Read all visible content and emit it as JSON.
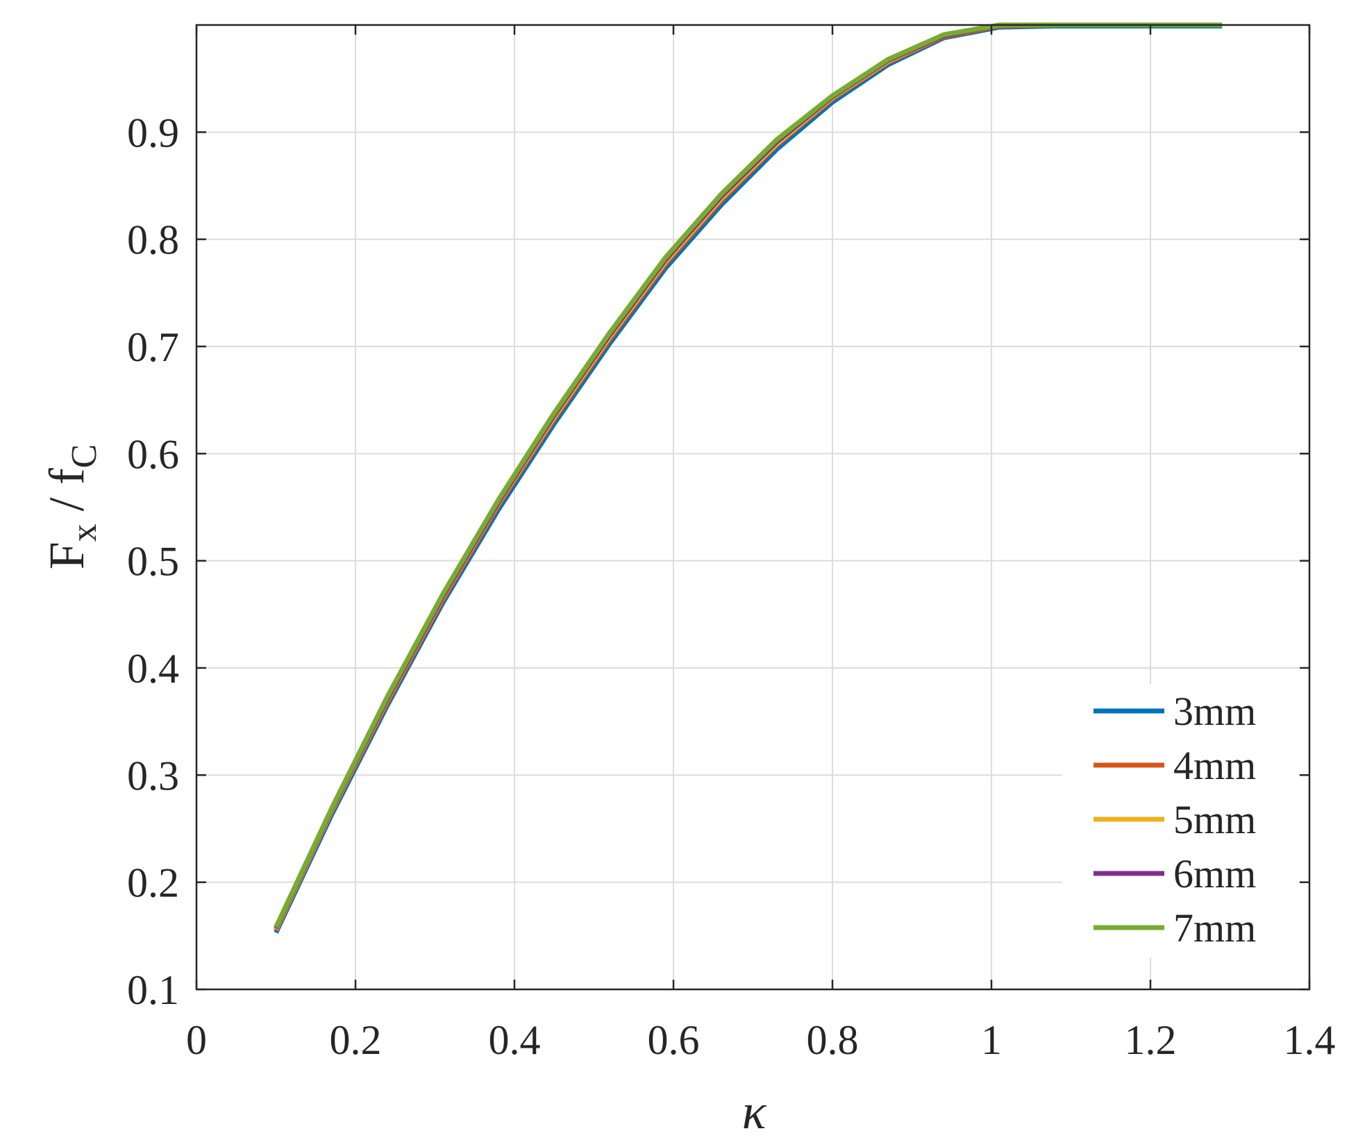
{
  "chart_data": {
    "type": "line",
    "xlabel": "κ",
    "ylabel": {
      "main": "F",
      "sub1": "x",
      "sep": " / f",
      "sub2": "C"
    },
    "xlim": [
      0,
      1.4
    ],
    "ylim": [
      0.1,
      1.0
    ],
    "x_ticks": [
      "0",
      "0.2",
      "0.4",
      "0.6",
      "0.8",
      "1",
      "1.2",
      "1.4"
    ],
    "y_ticks": [
      "0.1",
      "0.2",
      "0.3",
      "0.4",
      "0.5",
      "0.6",
      "0.7",
      "0.8",
      "0.9"
    ],
    "grid": true,
    "legend_position": "bottom-right",
    "series": [
      {
        "name": "3mm",
        "color": "#0072BD",
        "x": [
          0.1,
          0.17,
          0.24,
          0.31,
          0.38,
          0.45,
          0.52,
          0.59,
          0.66,
          0.73,
          0.8,
          0.87,
          0.94,
          1.01,
          1.08,
          1.15,
          1.22,
          1.29
        ],
        "y": [
          0.153,
          0.263,
          0.365,
          0.461,
          0.548,
          0.628,
          0.703,
          0.773,
          0.832,
          0.884,
          0.928,
          0.963,
          0.988,
          0.998,
          0.999,
          0.999,
          0.999,
          0.999
        ]
      },
      {
        "name": "4mm",
        "color": "#D95319",
        "x": [
          0.1,
          0.17,
          0.24,
          0.31,
          0.38,
          0.45,
          0.52,
          0.59,
          0.66,
          0.73,
          0.8,
          0.87,
          0.94,
          1.01,
          1.08,
          1.15,
          1.22,
          1.29
        ],
        "y": [
          0.155,
          0.266,
          0.368,
          0.464,
          0.552,
          0.632,
          0.707,
          0.777,
          0.836,
          0.888,
          0.931,
          0.965,
          0.989,
          0.999,
          1.0,
          1.0,
          1.0,
          1.0
        ]
      },
      {
        "name": "5mm",
        "color": "#EDB120",
        "x": [
          0.1,
          0.17,
          0.24,
          0.31,
          0.38,
          0.45,
          0.52,
          0.59,
          0.66,
          0.73,
          0.8,
          0.87,
          0.94,
          1.01,
          1.08,
          1.15,
          1.22,
          1.29
        ],
        "y": [
          0.156,
          0.267,
          0.37,
          0.466,
          0.554,
          0.634,
          0.709,
          0.779,
          0.838,
          0.889,
          0.932,
          0.966,
          0.99,
          1.0,
          1.0,
          1.0,
          1.0,
          1.0
        ]
      },
      {
        "name": "6mm",
        "color": "#7E2F8E",
        "x": [
          0.1,
          0.17,
          0.24,
          0.31,
          0.38,
          0.45,
          0.52,
          0.59,
          0.66,
          0.73,
          0.8,
          0.87,
          0.94,
          1.01,
          1.08,
          1.15,
          1.22,
          1.29
        ],
        "y": [
          0.157,
          0.268,
          0.371,
          0.467,
          0.555,
          0.636,
          0.711,
          0.781,
          0.84,
          0.891,
          0.933,
          0.967,
          0.99,
          1.0,
          1.0,
          1.0,
          1.0,
          1.0
        ]
      },
      {
        "name": "7mm",
        "color": "#77AC30",
        "x": [
          0.1,
          0.17,
          0.24,
          0.31,
          0.38,
          0.45,
          0.52,
          0.59,
          0.66,
          0.73,
          0.8,
          0.87,
          0.94,
          1.01,
          1.08,
          1.15,
          1.22,
          1.29
        ],
        "y": [
          0.158,
          0.269,
          0.373,
          0.469,
          0.557,
          0.638,
          0.713,
          0.783,
          0.842,
          0.893,
          0.934,
          0.968,
          0.991,
          1.0,
          1.0,
          1.0,
          1.0,
          1.0
        ]
      }
    ]
  }
}
